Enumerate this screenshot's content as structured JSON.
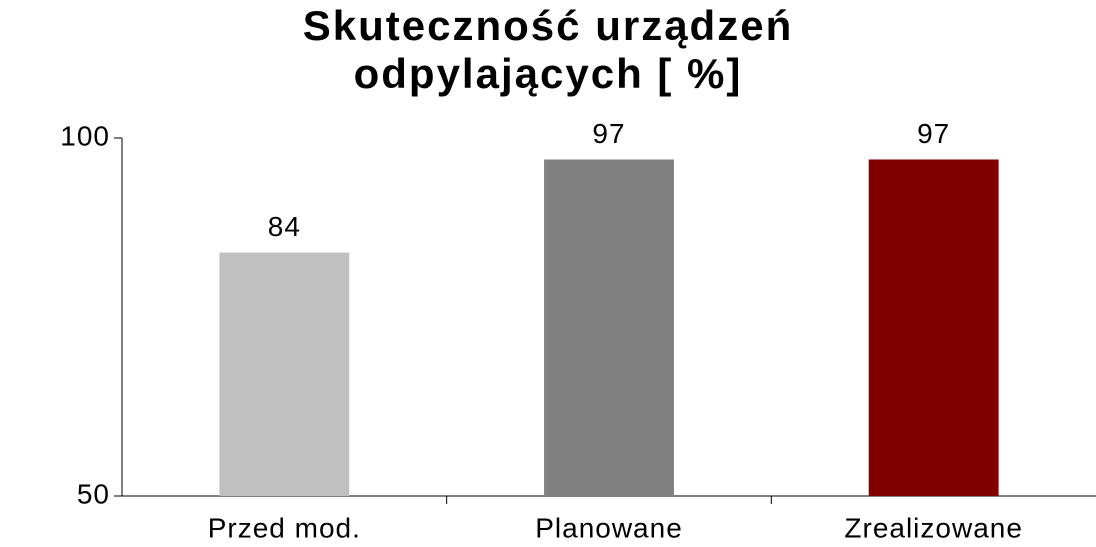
{
  "chart_data": {
    "type": "bar",
    "title": "Skuteczność urządzeń odpylających [ %]",
    "categories": [
      "Przed mod.",
      "Planowane",
      "Zrealizowane"
    ],
    "values": [
      84,
      97,
      97
    ],
    "colors": [
      "#c0c0c0",
      "#808080",
      "#800000"
    ],
    "ylim": [
      50,
      100
    ],
    "yticks": [
      50,
      100
    ],
    "grid": false
  }
}
